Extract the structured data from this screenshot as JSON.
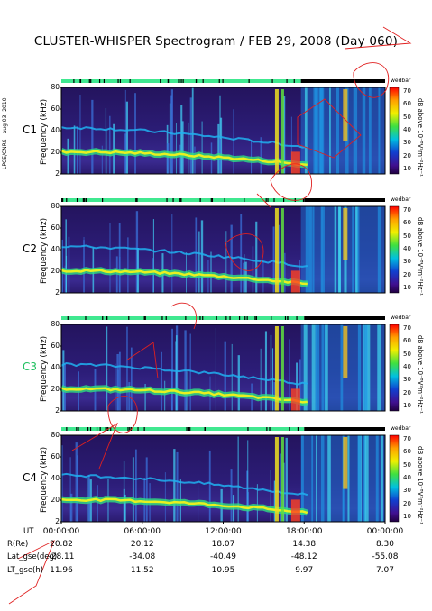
{
  "title": "CLUSTER-WHISPER Spectrogram / FEB 29, 2008 (Day 060)",
  "credit": "LPCE/CNRS - aug 03, 2010",
  "colors": {
    "background": "#ffffff",
    "status_on": "#40e890",
    "status_off": "#000000",
    "annotation": "#e02020",
    "plot_bg": "#2a1a6e"
  },
  "chart_data": {
    "type": "heatmap",
    "title": "CLUSTER-WHISPER Spectrogram / FEB 29, 2008 (Day 060)",
    "ylabel": "Frequency (kHz)",
    "yticks": [
      "80",
      "60",
      "40",
      "20",
      "2"
    ],
    "ylim": [
      2,
      80
    ],
    "colorbar": {
      "title": "wedbar",
      "label": "dB above 10⁻⁸V²m⁻²Hz⁻¹",
      "ticks": [
        "70",
        "60",
        "50",
        "40",
        "30",
        "20",
        "10"
      ],
      "range": [
        10,
        70
      ]
    },
    "panels": [
      {
        "name": "C1",
        "label_color": "#000000",
        "green_until_frac": 0.74
      },
      {
        "name": "C2",
        "label_color": "#000000",
        "green_until_frac": 0.75
      },
      {
        "name": "C3",
        "label_color": "#20c060",
        "green_until_frac": 0.75
      },
      {
        "name": "C4",
        "label_color": "#000000",
        "green_until_frac": 0.75
      }
    ],
    "xlabel": "UT",
    "x": [
      "00:00:00",
      "06:00:00",
      "12:00:00",
      "18:00:00",
      "00:00:00"
    ],
    "footer_rows": [
      {
        "label": "UT",
        "values": [
          "00:00:00",
          "06:00:00",
          "12:00:00",
          "18:00:00",
          "00:00:00"
        ]
      },
      {
        "label": "R(Re)",
        "values": [
          "20.82",
          "20.12",
          "18.07",
          "14.38",
          "8.30"
        ]
      },
      {
        "label": "Lat_gse(deg)",
        "values": [
          "-28.11",
          "-34.08",
          "-40.49",
          "-48.12",
          "-55.08"
        ]
      },
      {
        "label": "LT_gse(h)",
        "values": [
          "11.96",
          "11.52",
          "10.95",
          "9.97",
          "7.07"
        ]
      }
    ]
  }
}
